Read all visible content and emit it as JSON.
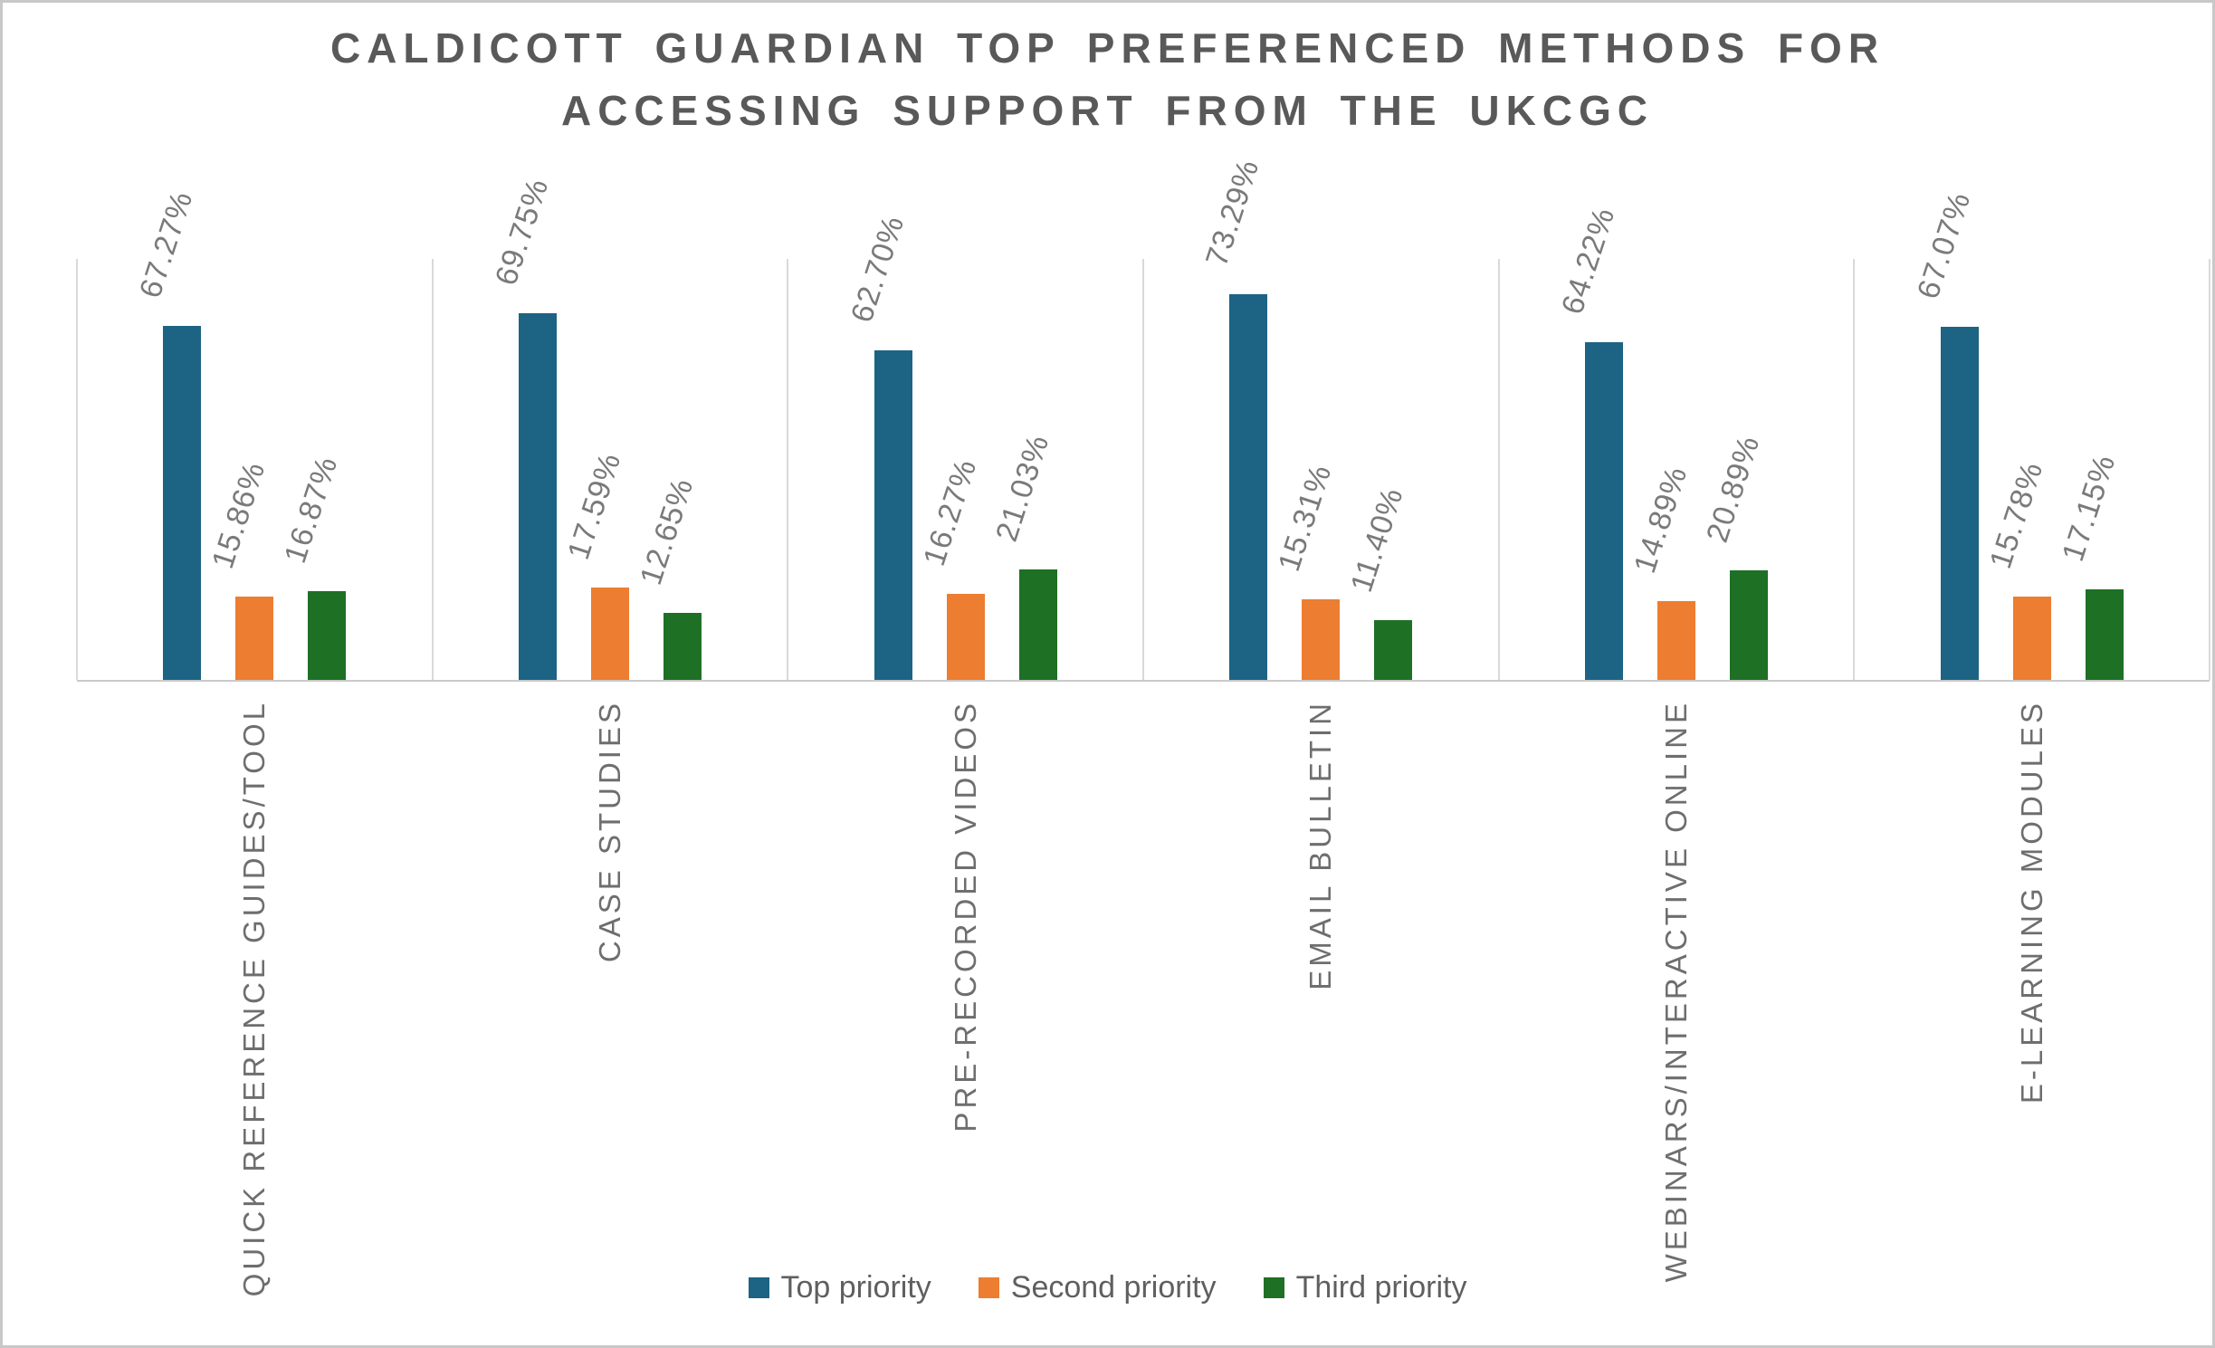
{
  "chart_data": {
    "type": "bar",
    "title": "CALDICOTT GUARDIAN TOP PREFERENCED METHODS FOR ACCESSING SUPPORT FROM THE UKCGC",
    "categories": [
      "QUICK REFERENCE GUIDES/TOOL",
      "CASE STUDIES",
      "PRE-RECORDED VIDEOS",
      "EMAIL BULLETIN",
      "WEBINARS/INTERACTIVE ONLINE",
      "E-LEARNING MODULES"
    ],
    "series": [
      {
        "name": "Top priority",
        "color": "#1d6384",
        "values": [
          67.27,
          69.75,
          62.7,
          73.29,
          64.22,
          67.07
        ]
      },
      {
        "name": "Second priority",
        "color": "#ed7d31",
        "values": [
          15.86,
          17.59,
          16.27,
          15.31,
          14.89,
          15.78
        ]
      },
      {
        "name": "Third priority",
        "color": "#1e7025",
        "values": [
          16.87,
          12.65,
          21.03,
          11.4,
          20.89,
          17.15
        ]
      }
    ],
    "data_label_format": "0.00%",
    "data_label_rotation_deg": -72,
    "category_label_rotation_deg": -90,
    "ylim": [
      0,
      80
    ],
    "y_axis_labels_visible": false,
    "grid": "vertical-category-separators",
    "legend_position": "bottom"
  },
  "styles": {
    "background": "#ffffff",
    "frame_border_color": "#c8c8c8",
    "title_color": "#595959",
    "data_label_color": "#7a7a7a",
    "category_label_color": "#6e6e6e",
    "legend_text_color": "#5f5f5f",
    "gridline_color": "#d9d9d9",
    "axis_line_color": "#c9c9c9"
  }
}
